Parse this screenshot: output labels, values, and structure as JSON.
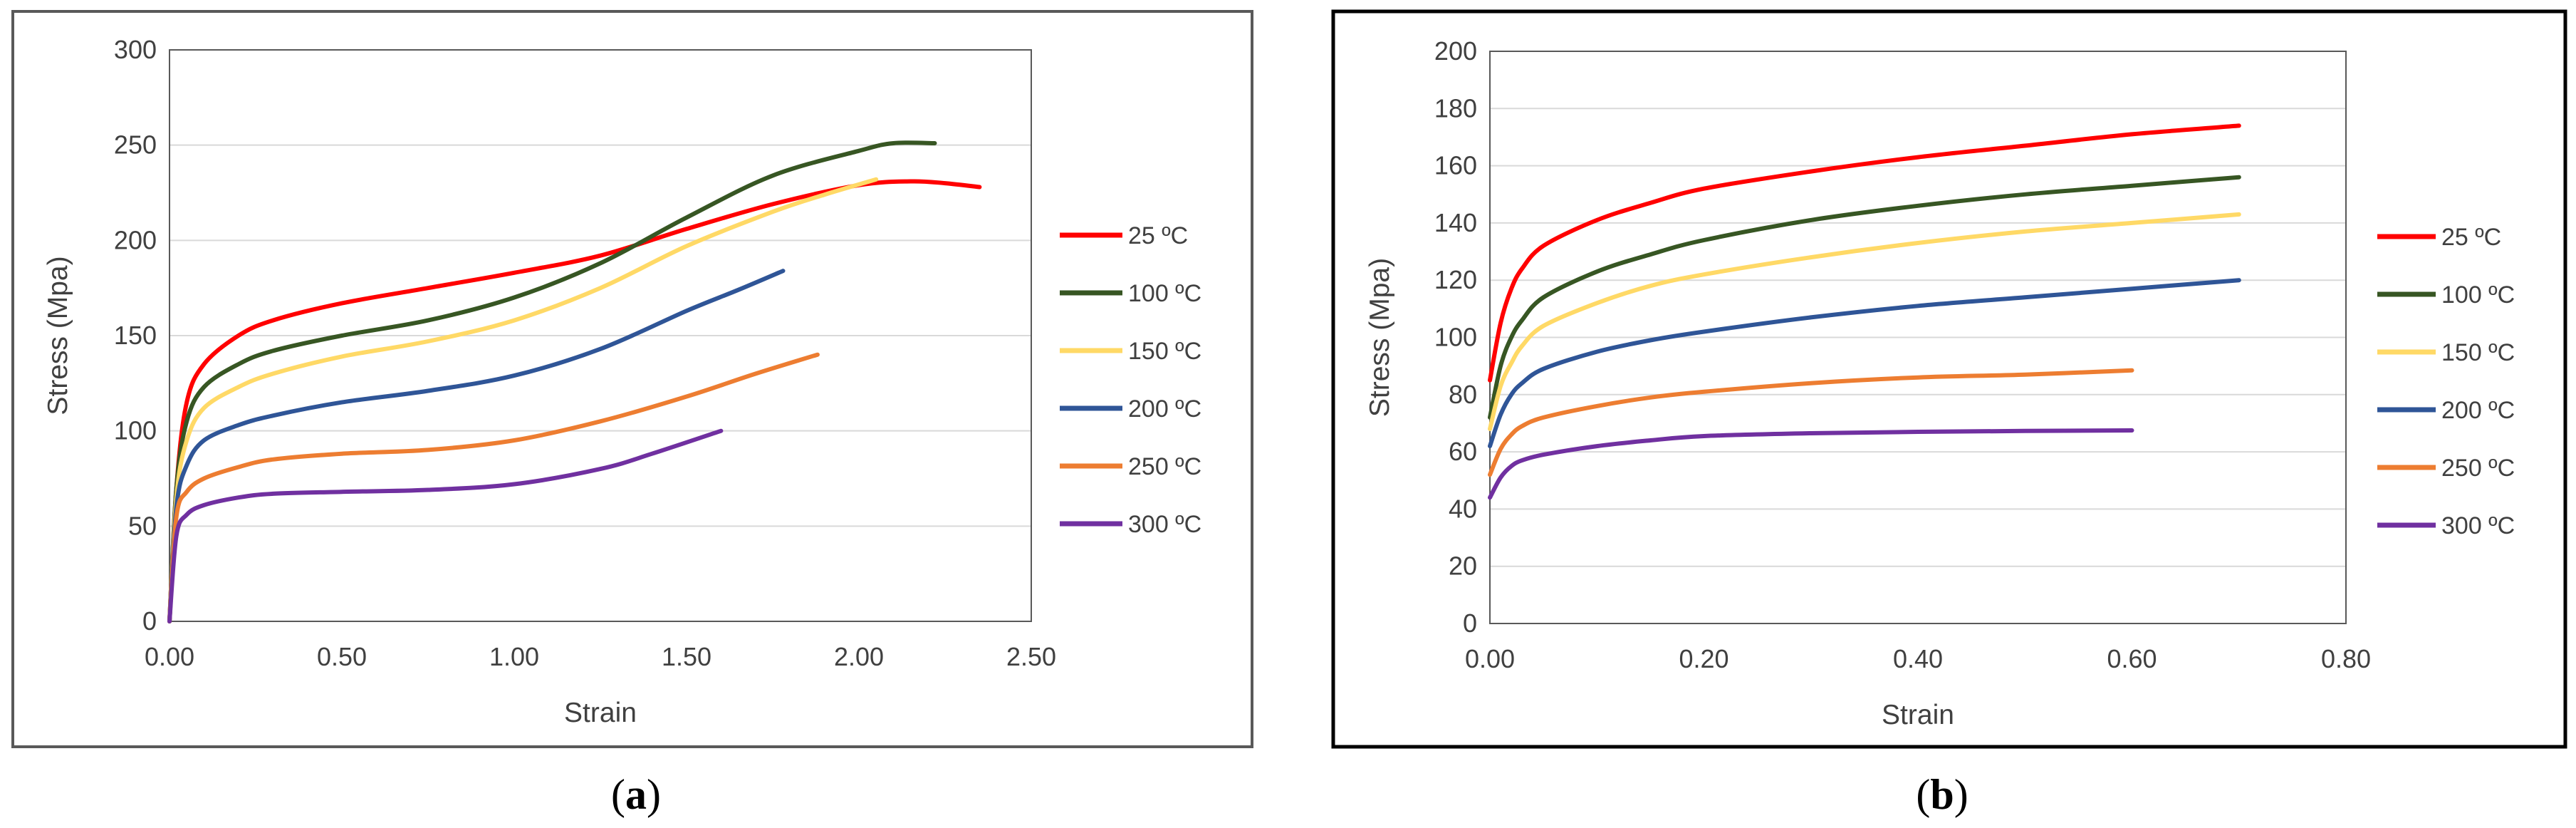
{
  "chart_data": [
    {
      "id": "a",
      "type": "line",
      "caption_letter": "a",
      "caption_open": "(",
      "caption_close": ")",
      "xlabel": "Strain",
      "ylabel": "Stress (Mpa)",
      "xlim": [
        0,
        2.5
      ],
      "ylim": [
        0,
        300
      ],
      "x_ticks": [
        0,
        0.5,
        1.0,
        1.5,
        2.0,
        2.5
      ],
      "x_tick_labels": [
        "0.00",
        "0.50",
        "1.00",
        "1.50",
        "2.00",
        "2.50"
      ],
      "y_ticks": [
        0,
        50,
        100,
        150,
        200,
        250,
        300
      ],
      "y_tick_labels": [
        "0",
        "50",
        "100",
        "150",
        "200",
        "250",
        "300"
      ],
      "grid": "horizontal",
      "legend_position": "right",
      "series": [
        {
          "name": "25 ºC",
          "color": "#ff0000",
          "points": [
            [
              0,
              0
            ],
            [
              0.02,
              70
            ],
            [
              0.05,
              115
            ],
            [
              0.1,
              135
            ],
            [
              0.2,
              150
            ],
            [
              0.3,
              158
            ],
            [
              0.5,
              167
            ],
            [
              0.75,
              175
            ],
            [
              1.0,
              183
            ],
            [
              1.25,
              192
            ],
            [
              1.5,
              206
            ],
            [
              1.75,
              219
            ],
            [
              2.0,
              229
            ],
            [
              2.15,
              231
            ],
            [
              2.25,
              230
            ],
            [
              2.35,
              228
            ]
          ]
        },
        {
          "name": "100 ºC",
          "color": "#375623",
          "points": [
            [
              0,
              0
            ],
            [
              0.02,
              70
            ],
            [
              0.05,
              105
            ],
            [
              0.1,
              123
            ],
            [
              0.2,
              135
            ],
            [
              0.3,
              142
            ],
            [
              0.5,
              150
            ],
            [
              0.75,
              158
            ],
            [
              1.0,
              170
            ],
            [
              1.25,
              188
            ],
            [
              1.5,
              212
            ],
            [
              1.75,
              234
            ],
            [
              2.0,
              247
            ],
            [
              2.1,
              251
            ],
            [
              2.22,
              251
            ]
          ]
        },
        {
          "name": "150 ºC",
          "color": "#ffd966",
          "points": [
            [
              0,
              0
            ],
            [
              0.02,
              65
            ],
            [
              0.05,
              95
            ],
            [
              0.1,
              112
            ],
            [
              0.2,
              123
            ],
            [
              0.3,
              130
            ],
            [
              0.5,
              139
            ],
            [
              0.75,
              147
            ],
            [
              1.0,
              158
            ],
            [
              1.25,
              175
            ],
            [
              1.5,
              197
            ],
            [
              1.75,
              215
            ],
            [
              1.9,
              224
            ],
            [
              2.05,
              232
            ]
          ]
        },
        {
          "name": "200 ºC",
          "color": "#2f5597",
          "points": [
            [
              0,
              0
            ],
            [
              0.02,
              60
            ],
            [
              0.05,
              82
            ],
            [
              0.1,
              95
            ],
            [
              0.2,
              103
            ],
            [
              0.3,
              108
            ],
            [
              0.5,
              115
            ],
            [
              0.75,
              121
            ],
            [
              1.0,
              129
            ],
            [
              1.25,
              143
            ],
            [
              1.5,
              163
            ],
            [
              1.65,
              174
            ],
            [
              1.78,
              184
            ]
          ]
        },
        {
          "name": "250 ºC",
          "color": "#ed7d31",
          "points": [
            [
              0,
              0
            ],
            [
              0.02,
              55
            ],
            [
              0.05,
              68
            ],
            [
              0.1,
              75
            ],
            [
              0.2,
              81
            ],
            [
              0.3,
              85
            ],
            [
              0.5,
              88
            ],
            [
              0.75,
              90
            ],
            [
              1.0,
              95
            ],
            [
              1.25,
              105
            ],
            [
              1.5,
              118
            ],
            [
              1.7,
              130
            ],
            [
              1.88,
              140
            ]
          ]
        },
        {
          "name": "300 ºC",
          "color": "#7030a0",
          "points": [
            [
              0,
              0
            ],
            [
              0.02,
              45
            ],
            [
              0.05,
              56
            ],
            [
              0.1,
              61
            ],
            [
              0.2,
              65
            ],
            [
              0.3,
              67
            ],
            [
              0.5,
              68
            ],
            [
              0.75,
              69
            ],
            [
              1.0,
              72
            ],
            [
              1.25,
              80
            ],
            [
              1.4,
              88
            ],
            [
              1.6,
              100
            ]
          ]
        }
      ]
    },
    {
      "id": "b",
      "type": "line",
      "caption_letter": "b",
      "caption_open": "(",
      "caption_close": ")",
      "xlabel": "Strain",
      "ylabel": "Stress (Mpa)",
      "xlim": [
        0,
        0.8
      ],
      "ylim": [
        0,
        200
      ],
      "x_ticks": [
        0,
        0.2,
        0.4,
        0.6,
        0.8
      ],
      "x_tick_labels": [
        "0.00",
        "0.20",
        "0.40",
        "0.60",
        "0.80"
      ],
      "y_ticks": [
        0,
        20,
        40,
        60,
        80,
        100,
        120,
        140,
        160,
        180,
        200
      ],
      "y_tick_labels": [
        "0",
        "20",
        "40",
        "60",
        "80",
        "100",
        "120",
        "140",
        "160",
        "180",
        "200"
      ],
      "grid": "horizontal",
      "legend_position": "right",
      "series": [
        {
          "name": "25 ºC",
          "color": "#ff0000",
          "points": [
            [
              0,
              85
            ],
            [
              0.01,
              105
            ],
            [
              0.02,
              117
            ],
            [
              0.03,
              124
            ],
            [
              0.05,
              132
            ],
            [
              0.1,
              141
            ],
            [
              0.15,
              147
            ],
            [
              0.2,
              152
            ],
            [
              0.3,
              158
            ],
            [
              0.4,
              163
            ],
            [
              0.5,
              167
            ],
            [
              0.6,
              171
            ],
            [
              0.7,
              174
            ]
          ]
        },
        {
          "name": "100 ºC",
          "color": "#375623",
          "points": [
            [
              0,
              72
            ],
            [
              0.01,
              90
            ],
            [
              0.02,
              100
            ],
            [
              0.03,
              106
            ],
            [
              0.05,
              114
            ],
            [
              0.1,
              123
            ],
            [
              0.15,
              129
            ],
            [
              0.2,
              134
            ],
            [
              0.3,
              141
            ],
            [
              0.4,
              146
            ],
            [
              0.5,
              150
            ],
            [
              0.6,
              153
            ],
            [
              0.7,
              156
            ]
          ]
        },
        {
          "name": "150 ºC",
          "color": "#ffd966",
          "points": [
            [
              0,
              68
            ],
            [
              0.01,
              83
            ],
            [
              0.02,
              91
            ],
            [
              0.03,
              97
            ],
            [
              0.05,
              104
            ],
            [
              0.1,
              112
            ],
            [
              0.15,
              118
            ],
            [
              0.2,
              122
            ],
            [
              0.3,
              128
            ],
            [
              0.4,
              133
            ],
            [
              0.5,
              137
            ],
            [
              0.6,
              140
            ],
            [
              0.7,
              143
            ]
          ]
        },
        {
          "name": "200 ºC",
          "color": "#2f5597",
          "points": [
            [
              0,
              62
            ],
            [
              0.01,
              73
            ],
            [
              0.02,
              80
            ],
            [
              0.03,
              84
            ],
            [
              0.05,
              89
            ],
            [
              0.1,
              95
            ],
            [
              0.15,
              99
            ],
            [
              0.2,
              102
            ],
            [
              0.3,
              107
            ],
            [
              0.4,
              111
            ],
            [
              0.5,
              114
            ],
            [
              0.6,
              117
            ],
            [
              0.7,
              120
            ]
          ]
        },
        {
          "name": "250 ºC",
          "color": "#ed7d31",
          "points": [
            [
              0,
              52
            ],
            [
              0.01,
              61
            ],
            [
              0.02,
              66
            ],
            [
              0.03,
              69
            ],
            [
              0.05,
              72
            ],
            [
              0.1,
              76
            ],
            [
              0.15,
              79
            ],
            [
              0.2,
              81
            ],
            [
              0.3,
              84
            ],
            [
              0.4,
              86
            ],
            [
              0.5,
              87
            ],
            [
              0.6,
              88.5
            ]
          ]
        },
        {
          "name": "300 ºC",
          "color": "#7030a0",
          "points": [
            [
              0,
              44
            ],
            [
              0.01,
              51
            ],
            [
              0.02,
              55
            ],
            [
              0.03,
              57
            ],
            [
              0.05,
              59
            ],
            [
              0.1,
              62
            ],
            [
              0.15,
              64
            ],
            [
              0.2,
              65.5
            ],
            [
              0.3,
              66.5
            ],
            [
              0.4,
              67
            ],
            [
              0.5,
              67.3
            ],
            [
              0.6,
              67.5
            ]
          ]
        }
      ]
    }
  ]
}
